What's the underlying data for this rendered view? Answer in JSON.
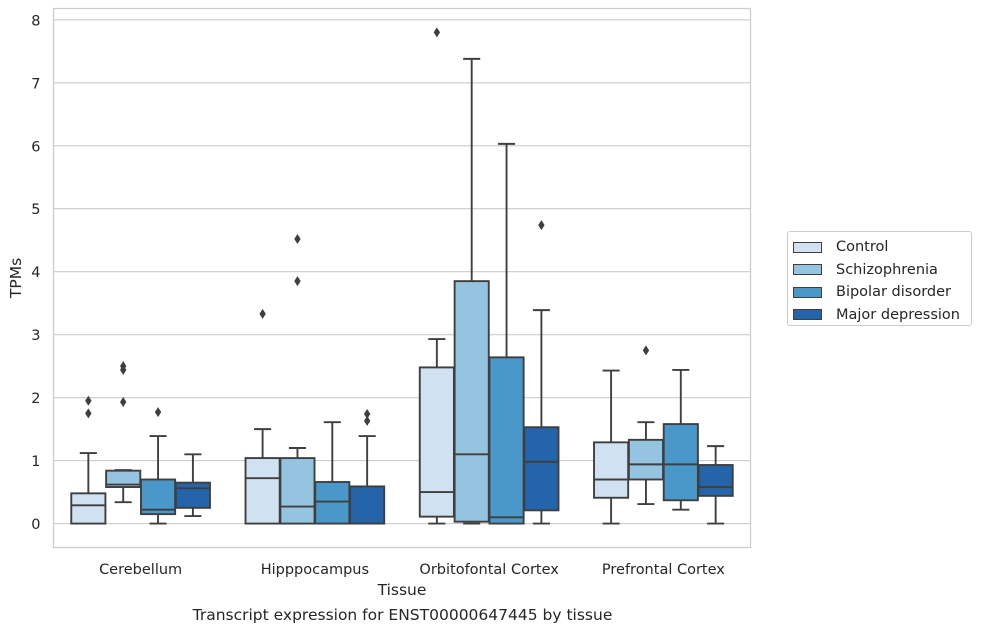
{
  "chart_data": {
    "type": "box",
    "xlabel": "Tissue",
    "ylabel": "TPMs",
    "ylim": [
      -0.38,
      8.18
    ],
    "yticks": [
      0,
      1,
      2,
      3,
      4,
      5,
      6,
      7,
      8
    ],
    "grid": true,
    "legend_position": "right",
    "categories": [
      "Cerebellum",
      "Hipppocampus",
      "Orbitofontal Cortex",
      "Prefrontal Cortex"
    ],
    "series": [
      {
        "name": "Control",
        "color": "#d0e1f2",
        "boxes": [
          {
            "whislo": 0.0,
            "q1": 0.0,
            "med": 0.29,
            "q3": 0.48,
            "whishi": 1.12,
            "fliers": [
              1.75,
              1.95
            ]
          },
          {
            "whislo": 0.0,
            "q1": 0.0,
            "med": 0.72,
            "q3": 1.04,
            "whishi": 1.5,
            "fliers": [
              3.33
            ]
          },
          {
            "whislo": 0.0,
            "q1": 0.11,
            "med": 0.5,
            "q3": 2.48,
            "whishi": 2.93,
            "fliers": [
              7.8
            ]
          },
          {
            "whislo": 0.0,
            "q1": 0.41,
            "med": 0.7,
            "q3": 1.29,
            "whishi": 2.43,
            "fliers": []
          }
        ]
      },
      {
        "name": "Schizophrenia",
        "color": "#94c4df",
        "boxes": [
          {
            "whislo": 0.34,
            "q1": 0.58,
            "med": 0.62,
            "q3": 0.84,
            "whishi": 0.85,
            "fliers": [
              1.93,
              2.44,
              2.5
            ]
          },
          {
            "whislo": 0.0,
            "q1": 0.0,
            "med": 0.27,
            "q3": 1.04,
            "whishi": 1.2,
            "fliers": [
              3.85,
              4.52
            ]
          },
          {
            "whislo": 0.0,
            "q1": 0.03,
            "med": 1.1,
            "q3": 3.85,
            "whishi": 7.38,
            "fliers": []
          },
          {
            "whislo": 0.31,
            "q1": 0.7,
            "med": 0.94,
            "q3": 1.33,
            "whishi": 1.61,
            "fliers": [
              2.75
            ]
          }
        ]
      },
      {
        "name": "Bipolar disorder",
        "color": "#4a98c9",
        "boxes": [
          {
            "whislo": 0.0,
            "q1": 0.15,
            "med": 0.22,
            "q3": 0.7,
            "whishi": 1.39,
            "fliers": [
              1.77
            ]
          },
          {
            "whislo": 0.0,
            "q1": 0.0,
            "med": 0.35,
            "q3": 0.66,
            "whishi": 1.61,
            "fliers": []
          },
          {
            "whislo": 0.0,
            "q1": 0.0,
            "med": 0.1,
            "q3": 2.64,
            "whishi": 6.03,
            "fliers": []
          },
          {
            "whislo": 0.22,
            "q1": 0.37,
            "med": 0.94,
            "q3": 1.58,
            "whishi": 2.44,
            "fliers": []
          }
        ]
      },
      {
        "name": "Major depression",
        "color": "#2364aa",
        "boxes": [
          {
            "whislo": 0.12,
            "q1": 0.25,
            "med": 0.56,
            "q3": 0.65,
            "whishi": 1.1,
            "fliers": []
          },
          {
            "whislo": 0.0,
            "q1": 0.0,
            "med": 0.0,
            "q3": 0.59,
            "whishi": 1.39,
            "fliers": [
              1.63,
              1.74
            ]
          },
          {
            "whislo": 0.0,
            "q1": 0.21,
            "med": 0.98,
            "q3": 1.53,
            "whishi": 3.39,
            "fliers": [
              4.74
            ]
          },
          {
            "whislo": 0.0,
            "q1": 0.44,
            "med": 0.58,
            "q3": 0.93,
            "whishi": 1.23,
            "fliers": []
          }
        ]
      }
    ]
  },
  "caption": "Transcript expression for ENST00000647445 by tissue"
}
